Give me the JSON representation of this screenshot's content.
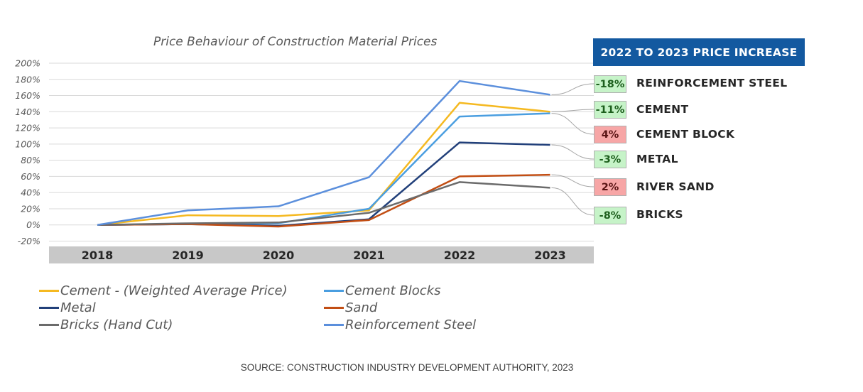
{
  "title": "Price Behaviour of Construction Material Prices",
  "source": "SOURCE: CONSTRUCTION INDUSTRY DEVELOPMENT AUTHORITY, 2023",
  "yticks": [
    "200%",
    "180%",
    "160%",
    "140%",
    "120%",
    "100%",
    "80%",
    "60%",
    "40%",
    "20%",
    "0%",
    "-20%"
  ],
  "chart_data": {
    "type": "line",
    "title": "Price Behaviour of Construction Material Prices",
    "xlabel": "",
    "ylabel": "",
    "x": [
      "2018",
      "2019",
      "2020",
      "2021",
      "2022",
      "2023"
    ],
    "ylim": [
      -20,
      200
    ],
    "y_unit": "%",
    "grid": true,
    "legend": "bottom",
    "series": [
      {
        "name": "Cement - (Weighted Average Price)",
        "color": "#f5b921",
        "values": [
          0,
          12,
          11,
          18,
          151,
          140
        ]
      },
      {
        "name": "Cement Blocks",
        "color": "#4a9ee0",
        "values": [
          0,
          1,
          2,
          20,
          134,
          138
        ]
      },
      {
        "name": "Metal",
        "color": "#22407a",
        "values": [
          0,
          1,
          -1,
          7,
          102,
          99
        ]
      },
      {
        "name": "Sand",
        "color": "#c24e14",
        "values": [
          0,
          1,
          -2,
          6,
          60,
          62
        ]
      },
      {
        "name": "Bricks (Hand Cut)",
        "color": "#6b6b6b",
        "values": [
          0,
          2,
          3,
          15,
          53,
          46
        ]
      },
      {
        "name": "Reinforcement Steel",
        "color": "#5b8fdc",
        "values": [
          0,
          18,
          23,
          59,
          178,
          161
        ]
      }
    ]
  },
  "panel": {
    "header": "2022 TO 2023 PRICE INCREASE",
    "items": [
      {
        "badge": "-18%",
        "label": "REINFORCEMENT STEEL",
        "trend": "down",
        "series_index": 5
      },
      {
        "badge": "-11%",
        "label": "CEMENT",
        "trend": "down",
        "series_index": 0
      },
      {
        "badge": "4%",
        "label": "CEMENT BLOCK",
        "trend": "up",
        "series_index": 1
      },
      {
        "badge": "-3%",
        "label": "METAL",
        "trend": "down",
        "series_index": 2
      },
      {
        "badge": "2%",
        "label": "RIVER SAND",
        "trend": "up",
        "series_index": 3
      },
      {
        "badge": "-8%",
        "label": "BRICKS",
        "trend": "down",
        "series_index": 4
      }
    ],
    "colors": {
      "down_bg": "#c6f3c8",
      "up_bg": "#f7a6a6",
      "header_bg": "#1359a0"
    }
  }
}
